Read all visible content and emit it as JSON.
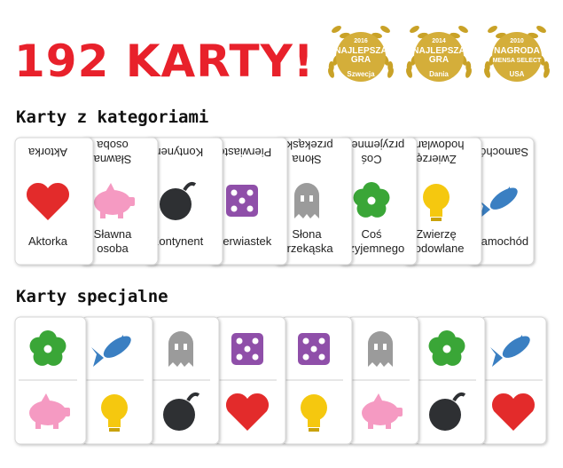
{
  "header": {
    "title": "192 KARTY!",
    "awards": [
      {
        "year": "2016",
        "lines": [
          "NAJLEPSZA",
          "GRA"
        ],
        "place": "Szwecja"
      },
      {
        "year": "2014",
        "lines": [
          "NAJLEPSZA",
          "GRA"
        ],
        "place": "Dania"
      },
      {
        "year": "2010",
        "lines": [
          "NAGRODA",
          "MENSA SELECT"
        ],
        "place": "USA"
      }
    ]
  },
  "categories_section": {
    "heading": "Karty z kategoriami",
    "cards": [
      {
        "label": [
          "Aktorka"
        ]
      },
      {
        "label": [
          "Sławna",
          "osoba"
        ]
      },
      {
        "label": [
          "Kontynent"
        ]
      },
      {
        "label": [
          "Pierwiastek"
        ]
      },
      {
        "label": [
          "Słona",
          "przekąska"
        ]
      },
      {
        "label": [
          "Coś",
          "przyjemnego"
        ]
      },
      {
        "label": [
          "Zwierzę",
          "hodowlane"
        ]
      },
      {
        "label": [
          "Samochód"
        ]
      }
    ]
  },
  "special_section": {
    "heading": "Karty specjalne"
  }
}
